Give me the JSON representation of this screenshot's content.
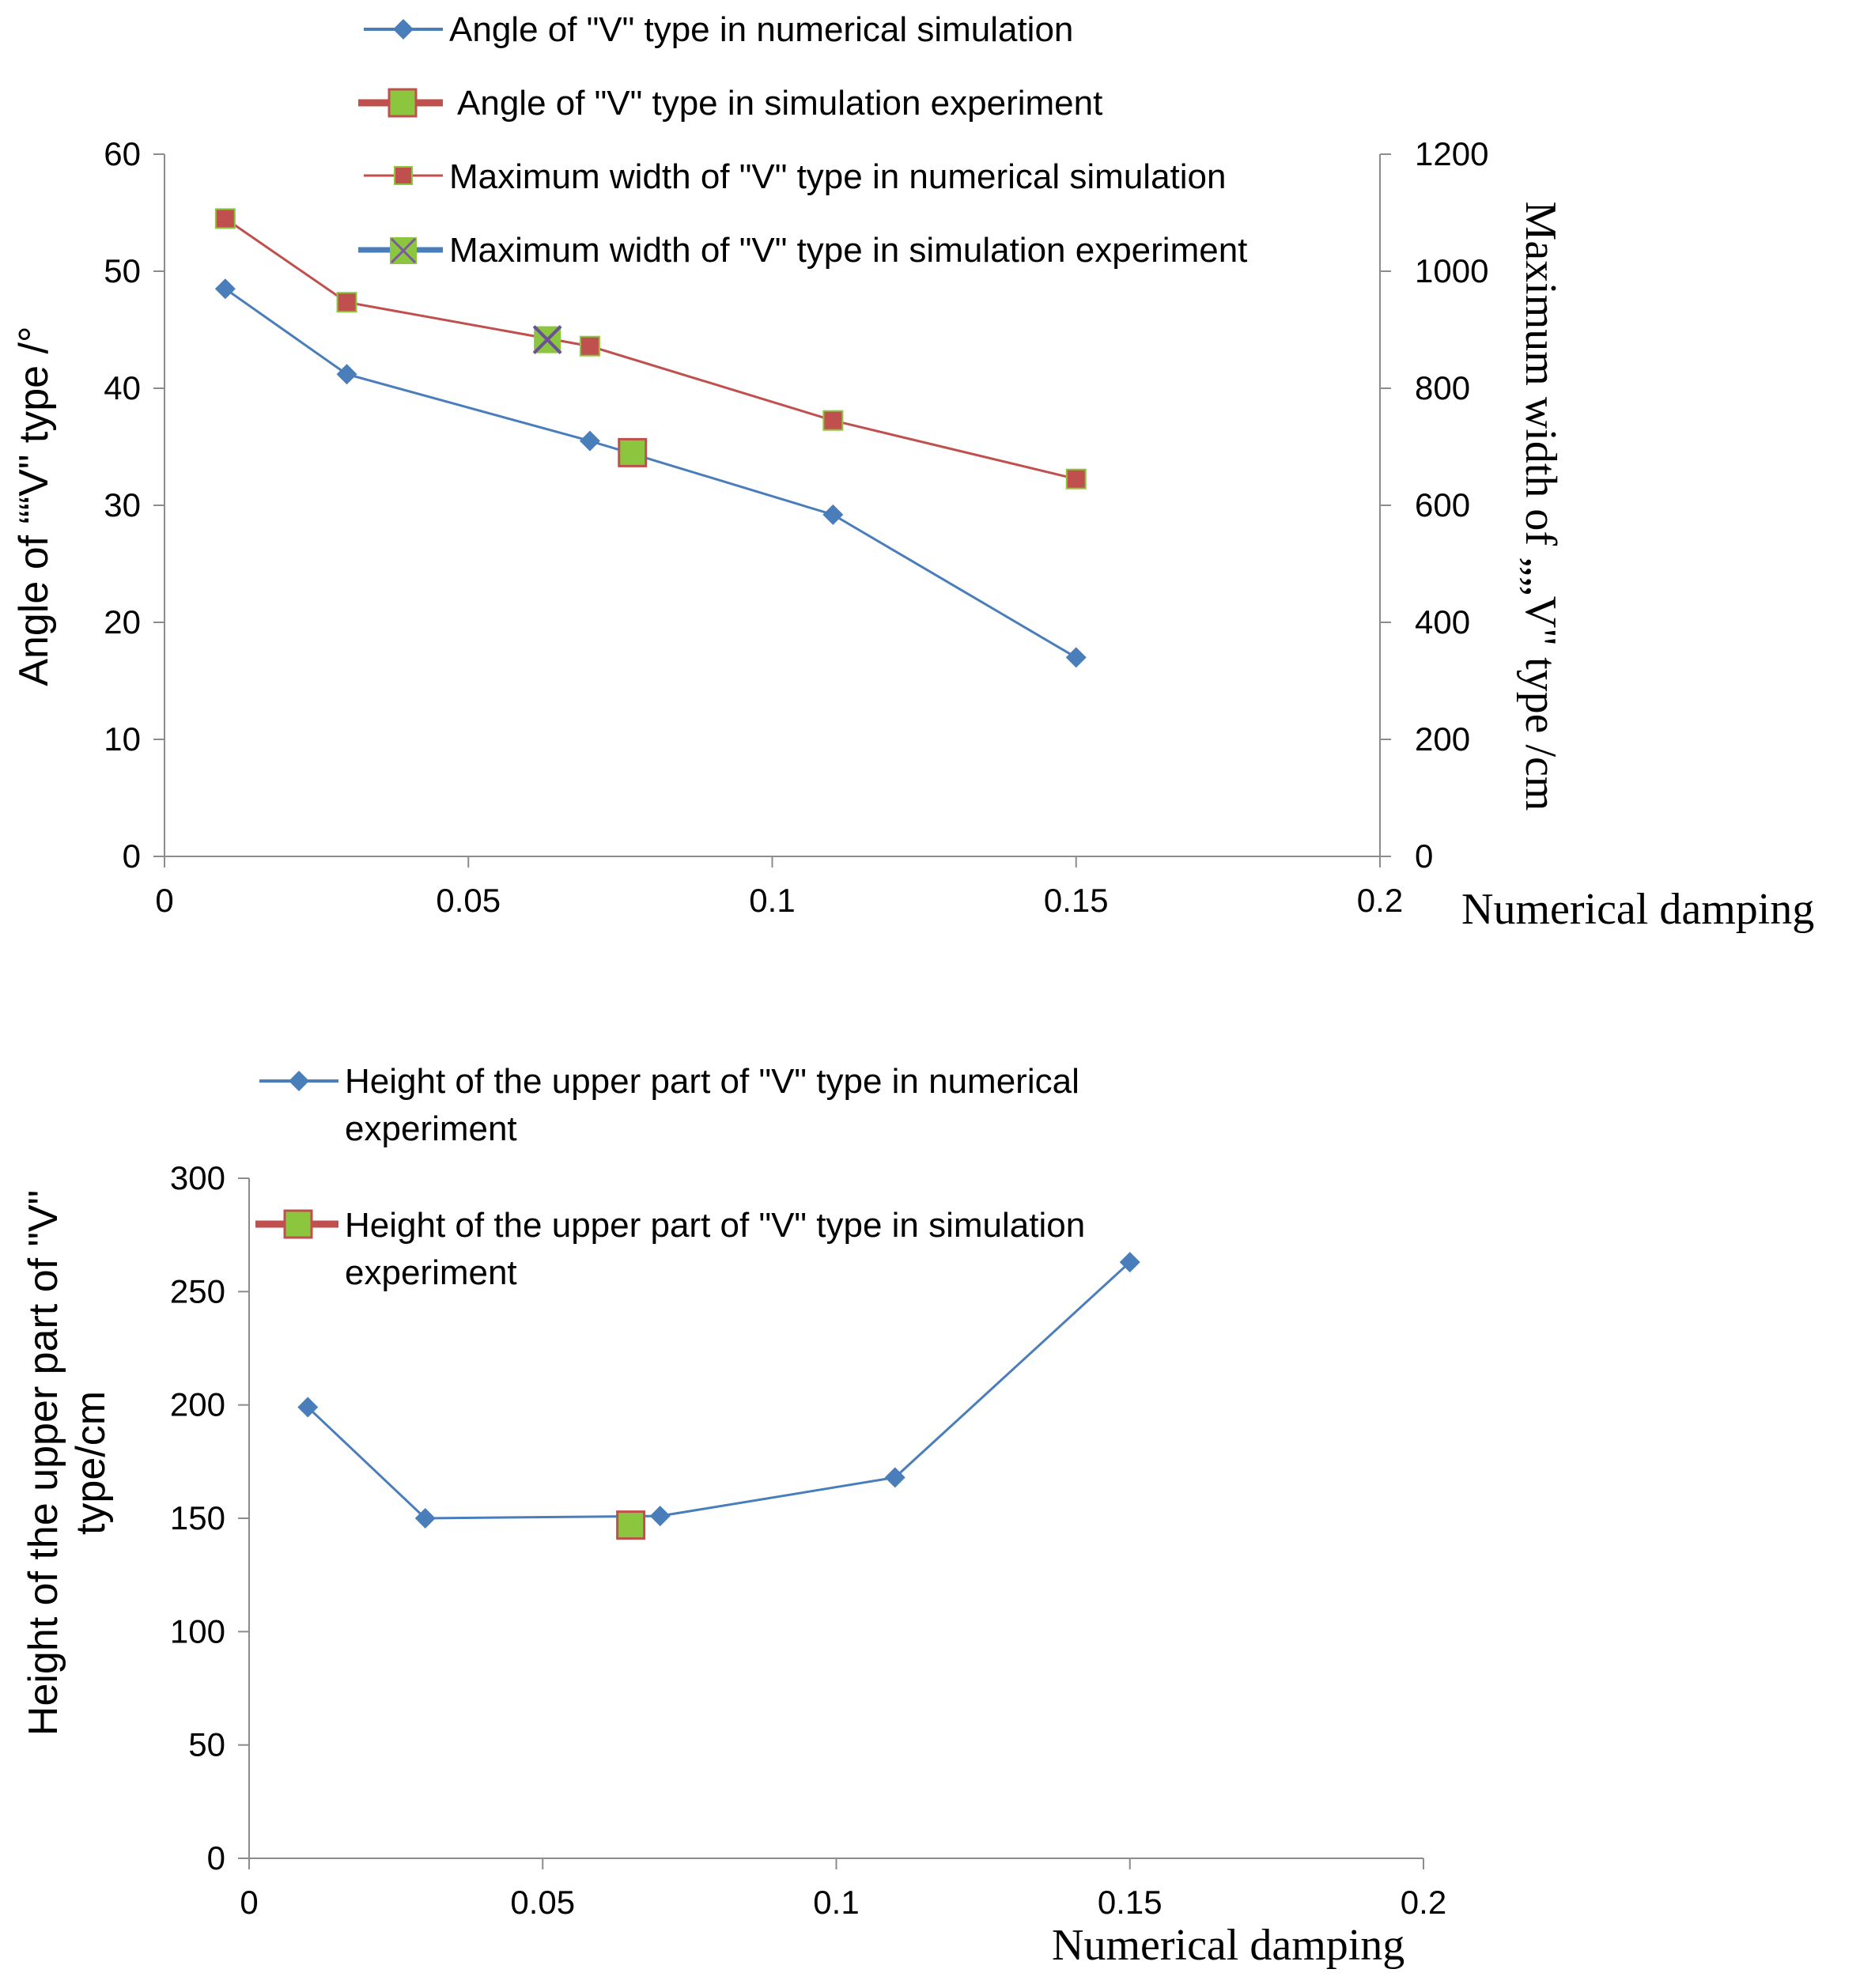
{
  "chart_data": [
    {
      "type": "line",
      "title": "",
      "xlabel": "Numerical damping",
      "ylabel": "Angle of ““V\" type /°",
      "y2label": "Maximum width of „„V\" type /cm",
      "xlim": [
        0,
        0.2
      ],
      "ylim": [
        0,
        60
      ],
      "y2lim": [
        0,
        1200
      ],
      "xticks": [
        "0",
        "0.05",
        "0.1",
        "0.15",
        "0.2"
      ],
      "yticks": [
        "0",
        "10",
        "20",
        "30",
        "40",
        "50",
        "60"
      ],
      "y2ticks": [
        "0",
        "200",
        "400",
        "600",
        "800",
        "1000",
        "1200"
      ],
      "series": [
        {
          "name": "Angle of \"V\"  type in numerical simulation",
          "axis": "left",
          "marker": "diamond",
          "color": "#4a7ebb",
          "x": [
            0.01,
            0.03,
            0.07,
            0.11,
            0.15
          ],
          "y": [
            48.5,
            41.2,
            35.5,
            29.2,
            17.0
          ]
        },
        {
          "name": " Angle of \"V\" type in simulation experiment",
          "axis": "left",
          "marker": "square-green",
          "color": "#c0504d",
          "x": [
            0.077
          ],
          "y": [
            34.5
          ]
        },
        {
          "name": " Maximum width  of  \"V\"  type in numerical simulation",
          "axis": "right",
          "marker": "square-red",
          "color": "#c0504d",
          "x": [
            0.01,
            0.03,
            0.07,
            0.11,
            0.15
          ],
          "y": [
            1090,
            947,
            872,
            745,
            645
          ]
        },
        {
          "name": "Maximum width  of \"V\" type in simulation experiment",
          "axis": "right",
          "marker": "x-green",
          "color": "#4a7ebb",
          "x": [
            0.063
          ],
          "y": [
            883
          ]
        }
      ]
    },
    {
      "type": "line",
      "title": "",
      "xlabel": "Numerical damping",
      "ylabel_lines": [
        "Height of the upper part of \"V\"",
        "type/cm"
      ],
      "xlim": [
        0,
        0.2
      ],
      "ylim": [
        0,
        300
      ],
      "xticks": [
        "0",
        "0.05",
        "0.1",
        "0.15",
        "0.2"
      ],
      "yticks": [
        "0",
        "50",
        "100",
        "150",
        "200",
        "250",
        "300"
      ],
      "series": [
        {
          "name_lines": [
            "Height of the upper part of \"V\" type in  numerical",
            "experiment"
          ],
          "marker": "diamond",
          "color": "#4a7ebb",
          "x": [
            0.01,
            0.03,
            0.07,
            0.11,
            0.15
          ],
          "y": [
            199,
            150,
            151,
            168,
            263
          ]
        },
        {
          "name_lines": [
            "Height of the upper part of \"V\" type in simulation",
            "experiment"
          ],
          "marker": "square-green",
          "color": "#c0504d",
          "x": [
            0.065
          ],
          "y": [
            147
          ]
        }
      ]
    }
  ]
}
